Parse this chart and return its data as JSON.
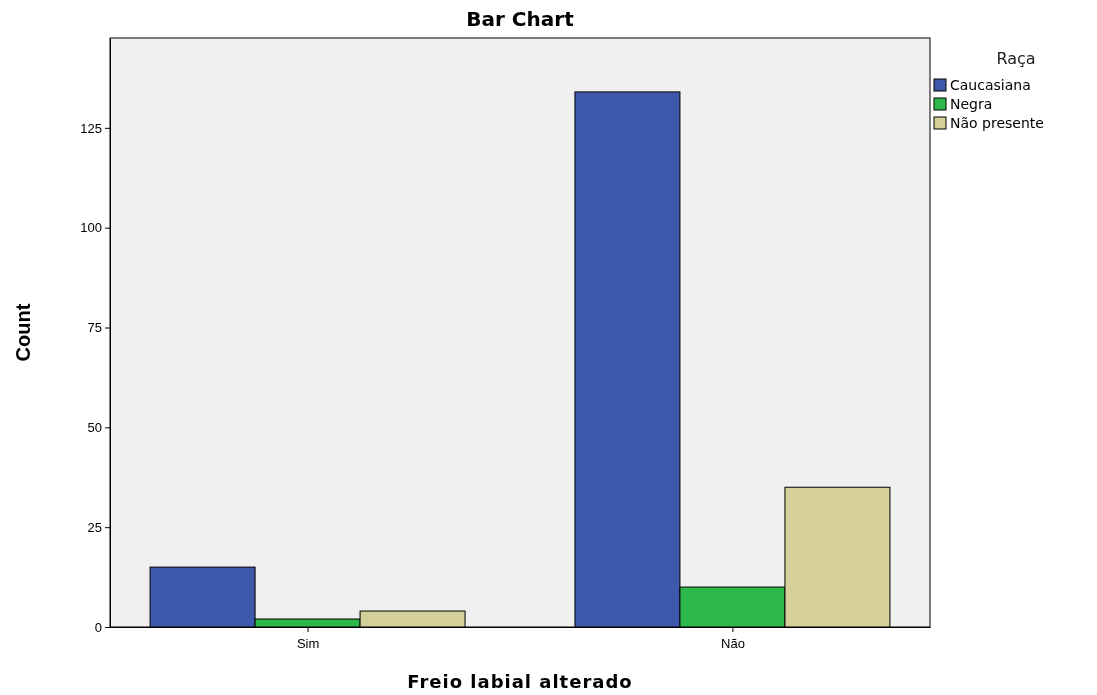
{
  "chart_data": {
    "type": "bar",
    "title": "Bar Chart",
    "xlabel": "Freio labial alterado",
    "ylabel": "Count",
    "legend_title": "Raça",
    "categories": [
      "Sim",
      "Não"
    ],
    "series": [
      {
        "name": "Caucasiana",
        "color": "#3e58ac",
        "values": [
          15,
          134
        ]
      },
      {
        "name": "Negra",
        "color": "#2eb84c",
        "values": [
          2,
          10
        ]
      },
      {
        "name": "Não presente",
        "color": "#d5d09a",
        "values": [
          4,
          35
        ]
      }
    ],
    "ylim": [
      0,
      147.5
    ],
    "yticks": [
      0,
      25,
      50,
      75,
      100,
      125
    ],
    "grid": false,
    "legend": "top right"
  }
}
